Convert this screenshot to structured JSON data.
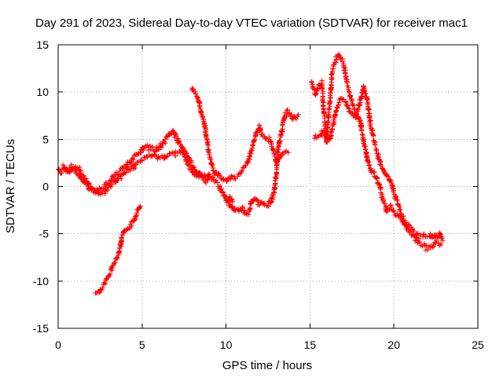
{
  "chart_data": {
    "type": "scatter",
    "title": "Day 291 of 2023, Sidereal Day-to-day VTEC variation (SDTVAR) for receiver mac1",
    "xlabel": "GPS time / hours",
    "ylabel": "SDTVAR / TECUs",
    "xlim": [
      0,
      25
    ],
    "ylim": [
      -15,
      15
    ],
    "xticks": [
      0,
      5,
      10,
      15,
      20,
      25
    ],
    "yticks": [
      -15,
      -10,
      -5,
      0,
      5,
      10,
      15
    ],
    "x_tick_labels": [
      "0",
      "5",
      "10",
      "15",
      "20",
      "25"
    ],
    "y_tick_labels": [
      "-15",
      "-10",
      "-5",
      "0",
      "5",
      "10",
      "15"
    ],
    "grid": true,
    "series": [
      {
        "name": "SDTVAR",
        "color": "#ff0000",
        "marker": "plus",
        "traces": [
          [
            [
              0.0,
              1.8
            ],
            [
              0.2,
              1.5
            ],
            [
              0.4,
              2.0
            ],
            [
              0.6,
              1.7
            ],
            [
              0.8,
              2.1
            ],
            [
              1.0,
              1.8
            ],
            [
              1.2,
              2.0
            ],
            [
              1.4,
              1.4
            ],
            [
              1.6,
              0.8
            ],
            [
              1.8,
              0.2
            ],
            [
              2.0,
              -0.2
            ],
            [
              2.2,
              -0.5
            ],
            [
              2.4,
              -0.4
            ],
            [
              2.6,
              -0.2
            ],
            [
              2.8,
              0.1
            ],
            [
              3.0,
              0.4
            ],
            [
              3.2,
              0.8
            ],
            [
              3.4,
              1.2
            ],
            [
              3.6,
              1.5
            ],
            [
              3.8,
              1.8
            ],
            [
              4.0,
              2.2
            ],
            [
              4.2,
              2.5
            ],
            [
              4.4,
              2.9
            ],
            [
              4.6,
              3.3
            ],
            [
              4.8,
              3.6
            ],
            [
              5.0,
              4.0
            ],
            [
              5.3,
              4.2
            ],
            [
              5.6,
              4.0
            ],
            [
              5.9,
              3.8
            ],
            [
              6.2,
              4.5
            ],
            [
              6.5,
              5.2
            ],
            [
              6.8,
              5.9
            ],
            [
              7.0,
              5.4
            ],
            [
              7.2,
              4.6
            ],
            [
              7.4,
              4.0
            ],
            [
              7.6,
              3.0
            ],
            [
              7.8,
              2.2
            ],
            [
              8.0,
              1.6
            ],
            [
              8.2,
              1.2
            ],
            [
              8.4,
              1.2
            ],
            [
              8.6,
              1.0
            ],
            [
              8.8,
              0.6
            ],
            [
              9.0,
              1.0
            ]
          ],
          [
            [
              0.3,
              2.1
            ],
            [
              0.6,
              1.4
            ],
            [
              0.9,
              1.8
            ],
            [
              1.2,
              1.3
            ],
            [
              1.5,
              0.7
            ],
            [
              1.8,
              -0.1
            ],
            [
              2.1,
              -0.4
            ],
            [
              2.4,
              -0.6
            ],
            [
              2.7,
              -0.5
            ],
            [
              3.0,
              -0.1
            ],
            [
              3.3,
              0.4
            ],
            [
              3.6,
              0.8
            ],
            [
              3.9,
              1.2
            ],
            [
              4.2,
              1.7
            ],
            [
              4.5,
              2.2
            ],
            [
              4.8,
              2.6
            ],
            [
              5.1,
              3.0
            ],
            [
              5.4,
              3.3
            ],
            [
              5.7,
              3.2
            ],
            [
              6.0,
              3.0
            ],
            [
              6.3,
              3.1
            ],
            [
              6.6,
              3.4
            ],
            [
              6.9,
              3.5
            ],
            [
              7.2,
              3.6
            ],
            [
              7.5,
              3.8
            ],
            [
              7.7,
              3.4
            ],
            [
              8.0,
              2.3
            ],
            [
              8.3,
              1.4
            ],
            [
              8.6,
              1.1
            ],
            [
              8.9,
              1.2
            ],
            [
              9.2,
              0.8
            ],
            [
              9.5,
              0.3
            ],
            [
              9.8,
              -0.5
            ],
            [
              10.0,
              -1.4
            ],
            [
              10.2,
              -1.1
            ],
            [
              10.4,
              -1.6
            ]
          ],
          [
            [
              2.2,
              -11.2
            ],
            [
              2.5,
              -11.0
            ],
            [
              2.7,
              -10.5
            ],
            [
              3.0,
              -9.4
            ],
            [
              3.2,
              -8.6
            ],
            [
              3.4,
              -8.0
            ],
            [
              3.6,
              -7.2
            ],
            [
              3.7,
              -6.3
            ],
            [
              3.8,
              -5.4
            ],
            [
              3.9,
              -4.8
            ],
            [
              4.1,
              -4.5
            ],
            [
              4.3,
              -4.1
            ],
            [
              4.5,
              -3.7
            ],
            [
              4.7,
              -2.6
            ],
            [
              4.9,
              -2.1
            ]
          ],
          [
            [
              8.0,
              10.3
            ],
            [
              8.3,
              9.4
            ],
            [
              8.5,
              8.0
            ],
            [
              8.7,
              6.8
            ],
            [
              8.8,
              5.5
            ],
            [
              8.9,
              4.6
            ],
            [
              9.0,
              3.2
            ],
            [
              9.2,
              1.9
            ],
            [
              9.3,
              1.5
            ],
            [
              9.5,
              1.3
            ],
            [
              9.8,
              0.6
            ],
            [
              10.2,
              0.8
            ],
            [
              10.5,
              0.9
            ],
            [
              10.8,
              1.3
            ],
            [
              11.0,
              1.9
            ],
            [
              11.3,
              2.5
            ],
            [
              11.6,
              4.3
            ],
            [
              11.8,
              5.6
            ],
            [
              12.0,
              6.3
            ],
            [
              12.2,
              5.4
            ],
            [
              12.4,
              5.0
            ],
            [
              12.6,
              5.0
            ],
            [
              12.8,
              4.0
            ],
            [
              13.0,
              2.6
            ],
            [
              13.2,
              3.2
            ],
            [
              13.4,
              3.6
            ],
            [
              13.7,
              3.6
            ]
          ],
          [
            [
              10.0,
              -1.2
            ],
            [
              10.2,
              -2.0
            ],
            [
              10.5,
              -2.4
            ],
            [
              10.8,
              -2.6
            ],
            [
              11.0,
              -2.4
            ],
            [
              11.2,
              -3.0
            ],
            [
              11.4,
              -2.6
            ],
            [
              11.5,
              -1.6
            ],
            [
              11.7,
              -1.3
            ],
            [
              12.0,
              -1.9
            ],
            [
              12.2,
              -1.8
            ],
            [
              12.5,
              -1.9
            ],
            [
              12.7,
              -1.5
            ],
            [
              12.9,
              -0.2
            ],
            [
              13.0,
              1.5
            ],
            [
              13.1,
              4.1
            ],
            [
              13.3,
              5.7
            ],
            [
              13.5,
              7.5
            ],
            [
              13.7,
              8.0
            ],
            [
              13.9,
              7.4
            ],
            [
              14.1,
              7.2
            ],
            [
              14.3,
              7.6
            ]
          ],
          [
            [
              15.1,
              10.9
            ],
            [
              15.3,
              9.8
            ],
            [
              15.5,
              10.6
            ],
            [
              15.7,
              11.0
            ],
            [
              15.8,
              8.4
            ],
            [
              15.9,
              6.6
            ],
            [
              16.0,
              4.6
            ],
            [
              16.1,
              7.3
            ],
            [
              16.2,
              9.0
            ],
            [
              16.3,
              11.8
            ],
            [
              16.4,
              12.8
            ],
            [
              16.6,
              13.6
            ],
            [
              16.8,
              13.8
            ],
            [
              17.0,
              13.0
            ],
            [
              17.2,
              11.0
            ],
            [
              17.4,
              9.4
            ],
            [
              17.6,
              8.4
            ],
            [
              17.8,
              7.6
            ],
            [
              18.0,
              6.8
            ],
            [
              18.2,
              4.8
            ],
            [
              18.4,
              3.0
            ],
            [
              18.6,
              1.8
            ],
            [
              18.8,
              1.4
            ],
            [
              19.0,
              0.8
            ],
            [
              19.2,
              -0.3
            ],
            [
              19.4,
              -1.8
            ],
            [
              19.6,
              -2.4
            ],
            [
              19.8,
              -2.2
            ],
            [
              20.0,
              -2.8
            ],
            [
              20.2,
              -2.9
            ],
            [
              20.5,
              -3.6
            ],
            [
              20.8,
              -4.5
            ],
            [
              21.1,
              -5.2
            ],
            [
              21.4,
              -5.8
            ],
            [
              21.7,
              -6.2
            ],
            [
              22.0,
              -6.5
            ],
            [
              22.3,
              -6.4
            ],
            [
              22.5,
              -5.9
            ],
            [
              22.8,
              -6.1
            ]
          ],
          [
            [
              15.3,
              5.2
            ],
            [
              15.6,
              5.6
            ],
            [
              15.8,
              5.9
            ],
            [
              16.0,
              5.2
            ],
            [
              16.2,
              5.0
            ],
            [
              16.5,
              7.6
            ],
            [
              16.8,
              9.3
            ],
            [
              17.1,
              9.0
            ],
            [
              17.4,
              7.8
            ],
            [
              17.7,
              7.3
            ],
            [
              18.0,
              9.0
            ],
            [
              18.2,
              10.5
            ],
            [
              18.4,
              9.4
            ],
            [
              18.6,
              6.6
            ],
            [
              18.8,
              5.0
            ],
            [
              19.0,
              3.6
            ],
            [
              19.2,
              2.4
            ],
            [
              19.4,
              1.7
            ],
            [
              19.6,
              1.2
            ],
            [
              19.8,
              0.4
            ],
            [
              20.0,
              -0.6
            ],
            [
              20.2,
              -1.6
            ],
            [
              20.4,
              -2.8
            ],
            [
              20.6,
              -3.6
            ],
            [
              20.8,
              -4.1
            ],
            [
              21.0,
              -4.4
            ],
            [
              21.2,
              -4.8
            ],
            [
              21.5,
              -5.3
            ],
            [
              21.8,
              -5.2
            ],
            [
              22.1,
              -5.1
            ],
            [
              22.4,
              -5.3
            ],
            [
              22.7,
              -5.0
            ],
            [
              22.9,
              -5.7
            ]
          ]
        ]
      }
    ]
  }
}
